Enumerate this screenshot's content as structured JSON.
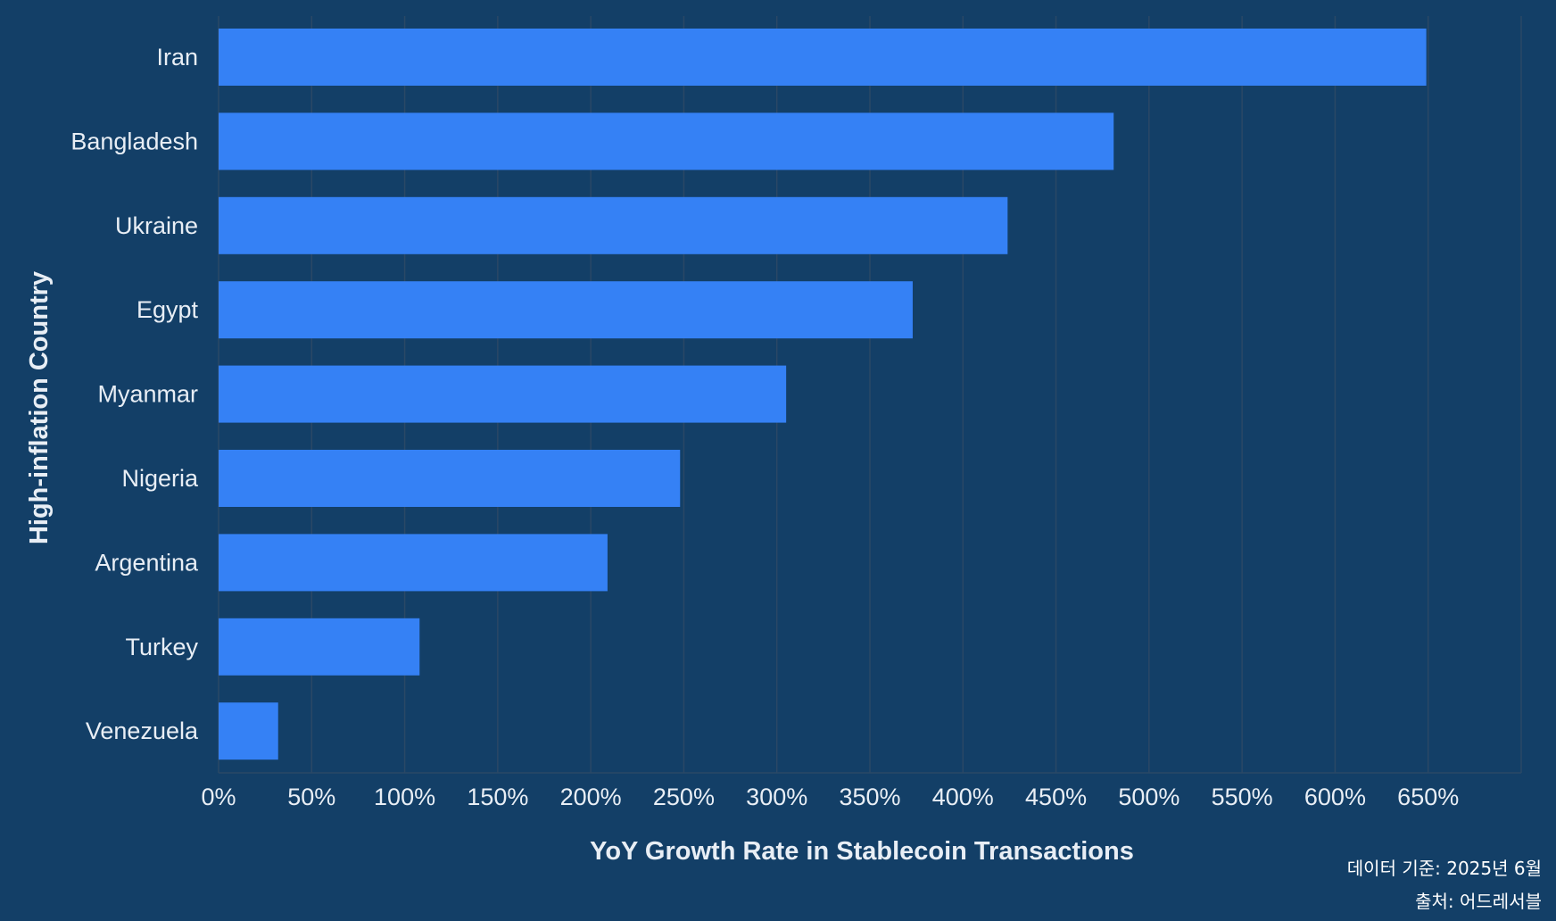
{
  "colors": {
    "background": "#133f67",
    "bar": "#3581f5",
    "grid": "#2a4866",
    "text": "#e8eef5"
  },
  "chart_data": {
    "type": "bar",
    "orientation": "horizontal",
    "title": "",
    "xlabel": "YoY Growth Rate in Stablecoin Transactions",
    "ylabel": "High-inflation Country",
    "xlim": [
      0,
      700
    ],
    "ticks": [
      0,
      50,
      100,
      150,
      200,
      250,
      300,
      350,
      400,
      450,
      500,
      550,
      600,
      650
    ],
    "tick_labels": [
      "0%",
      "50%",
      "100%",
      "150%",
      "200%",
      "250%",
      "300%",
      "350%",
      "400%",
      "450%",
      "500%",
      "550%",
      "600%",
      "650%"
    ],
    "grid": "vertical",
    "categories": [
      "Iran",
      "Bangladesh",
      "Ukraine",
      "Egypt",
      "Myanmar",
      "Nigeria",
      "Argentina",
      "Turkey",
      "Venezuela"
    ],
    "values": [
      649,
      481,
      424,
      373,
      305,
      248,
      209,
      108,
      32
    ]
  },
  "notes": {
    "data_date": "데이터 기준: 2025년 6월",
    "source": "출처: 어드레서블"
  }
}
